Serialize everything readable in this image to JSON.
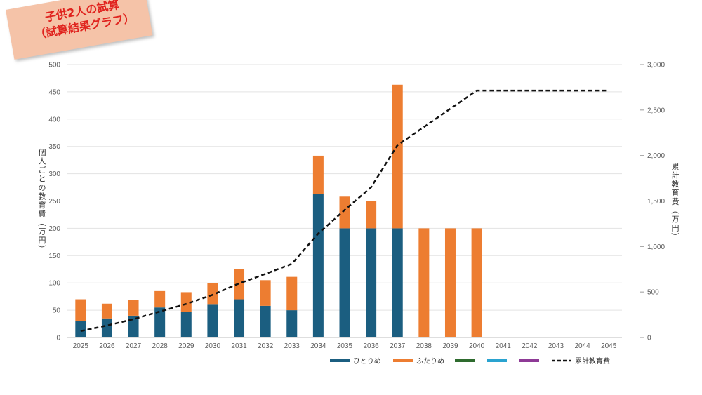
{
  "badge": {
    "line1": "子供2人の試算",
    "line2": "（試算結果グラフ）"
  },
  "chart_data": {
    "type": "bar",
    "stacked": true,
    "categories": [
      "2025",
      "2026",
      "2027",
      "2028",
      "2029",
      "2030",
      "2031",
      "2032",
      "2033",
      "2034",
      "2035",
      "2036",
      "2037",
      "2038",
      "2039",
      "2040",
      "2041",
      "2042",
      "2043",
      "2044",
      "2045"
    ],
    "series": [
      {
        "name": "ひとりめ",
        "color": "#1b5e80",
        "values": [
          30,
          35,
          40,
          55,
          47,
          60,
          70,
          58,
          50,
          263,
          200,
          200,
          200,
          0,
          0,
          0,
          0,
          0,
          0,
          0,
          0
        ]
      },
      {
        "name": "ふたりめ",
        "color": "#ed7d31",
        "values": [
          40,
          27,
          29,
          30,
          36,
          40,
          55,
          47,
          61,
          70,
          58,
          50,
          263,
          200,
          200,
          200,
          0,
          0,
          0,
          0,
          0
        ]
      },
      {
        "name": "",
        "color": "#2e6b2e",
        "values": [
          0,
          0,
          0,
          0,
          0,
          0,
          0,
          0,
          0,
          0,
          0,
          0,
          0,
          0,
          0,
          0,
          0,
          0,
          0,
          0,
          0
        ]
      },
      {
        "name": "",
        "color": "#2aa3d0",
        "values": [
          0,
          0,
          0,
          0,
          0,
          0,
          0,
          0,
          0,
          0,
          0,
          0,
          0,
          0,
          0,
          0,
          0,
          0,
          0,
          0,
          0
        ]
      },
      {
        "name": "",
        "color": "#8e3a96",
        "values": [
          0,
          0,
          0,
          0,
          0,
          0,
          0,
          0,
          0,
          0,
          0,
          0,
          0,
          0,
          0,
          0,
          0,
          0,
          0,
          0,
          0
        ]
      }
    ],
    "line_series": {
      "name": "累計教育費",
      "axis": "right",
      "color": "#111111",
      "dashed": true,
      "values": [
        70,
        132,
        201,
        286,
        369,
        469,
        594,
        699,
        810,
        1143,
        1401,
        1651,
        2114,
        2314,
        2514,
        2714,
        2714,
        2714,
        2714,
        2714,
        2714
      ]
    },
    "y_left": {
      "label": "個人ごとの教育費（万円）",
      "ylim": [
        0,
        500
      ],
      "ticks": [
        0,
        50,
        100,
        150,
        200,
        250,
        300,
        350,
        400,
        450,
        500
      ],
      "tick_labels": [
        "0",
        "50",
        "100",
        "150",
        "200",
        "250",
        "300",
        "350",
        "400",
        "450",
        "500"
      ]
    },
    "y_right": {
      "label": "累計教育費（万円）",
      "ylim": [
        0,
        3000
      ],
      "ticks": [
        0,
        500,
        1000,
        1500,
        2000,
        2500,
        3000
      ],
      "tick_labels": [
        "0",
        "500",
        "1,000",
        "1,500",
        "2,000",
        "2,500",
        "3,000"
      ]
    },
    "legend_position": "bottom-right"
  }
}
